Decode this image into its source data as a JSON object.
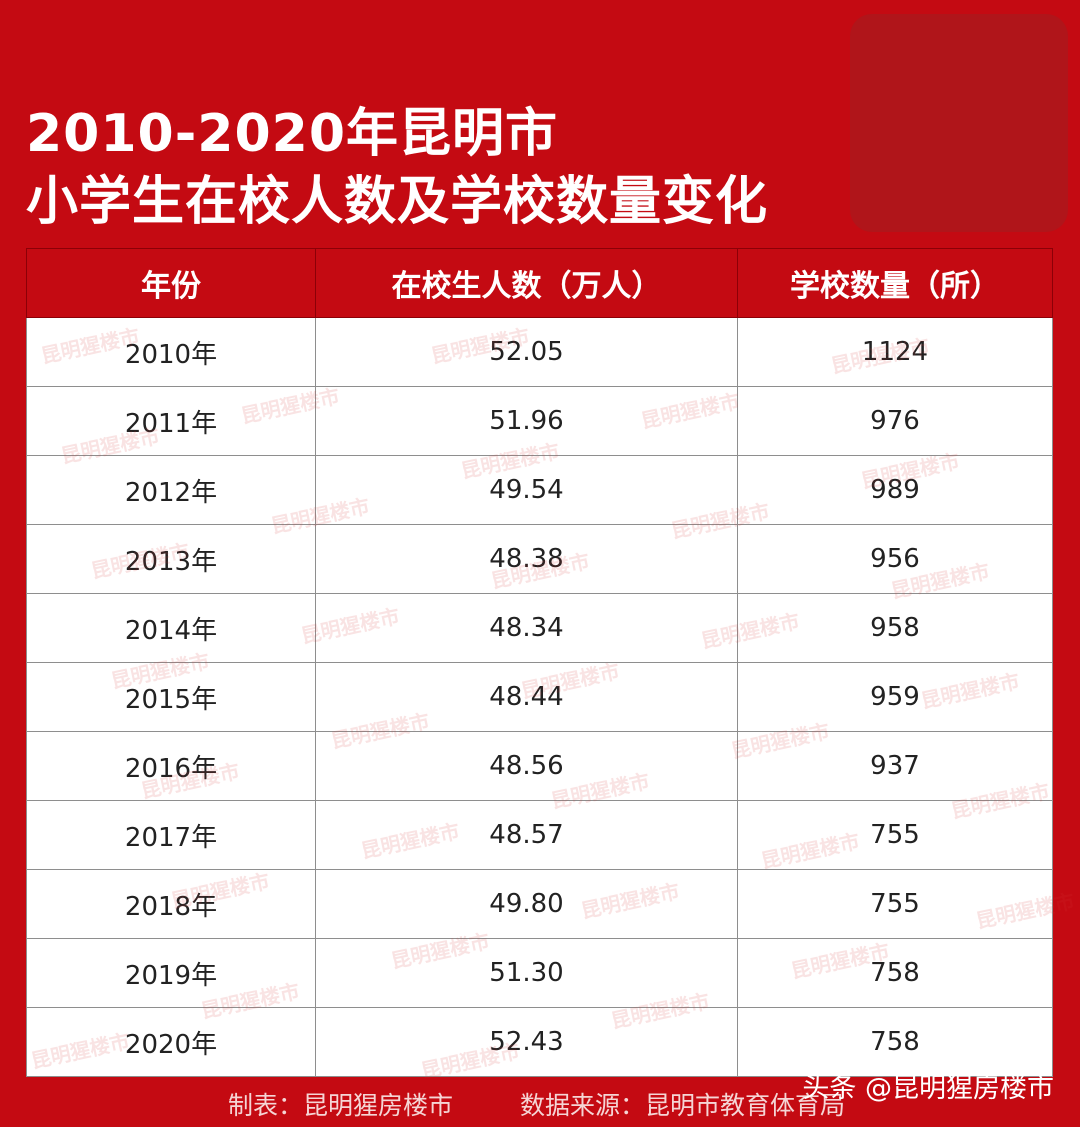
{
  "title": {
    "line1": "2010-2020年昆明市",
    "line2": "小学生在校人数及学校数量变化"
  },
  "table": {
    "headers": [
      "年份",
      "在校生人数（万人）",
      "学校数量（所）"
    ],
    "rows": [
      [
        "2010年",
        "52.05",
        "1124"
      ],
      [
        "2011年",
        "51.96",
        "976"
      ],
      [
        "2012年",
        "49.54",
        "989"
      ],
      [
        "2013年",
        "48.38",
        "956"
      ],
      [
        "2014年",
        "48.34",
        "958"
      ],
      [
        "2015年",
        "48.44",
        "959"
      ],
      [
        "2016年",
        "48.56",
        "937"
      ],
      [
        "2017年",
        "48.57",
        "755"
      ],
      [
        "2018年",
        "49.80",
        "755"
      ],
      [
        "2019年",
        "51.30",
        "758"
      ],
      [
        "2020年",
        "52.43",
        "758"
      ]
    ]
  },
  "footer": {
    "maker": "制表：昆明猩房楼市",
    "source": "数据来源：昆明市教育体育局"
  },
  "credit": "头条 @昆明猩房楼市",
  "watermark_text": "昆明猩楼市",
  "colors": {
    "background": "#c40a12",
    "text_light": "#ffffff"
  }
}
